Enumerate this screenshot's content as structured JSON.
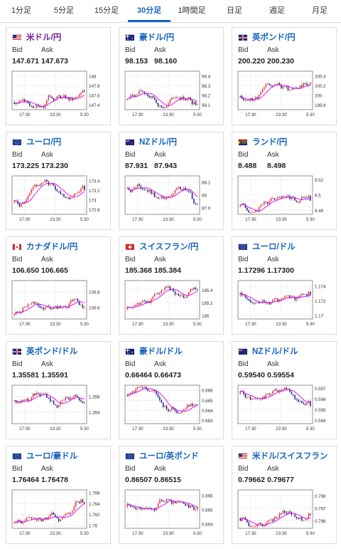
{
  "tabs": [
    {
      "label": "1分足",
      "active": false
    },
    {
      "label": "5分足",
      "active": false
    },
    {
      "label": "15分足",
      "active": false
    },
    {
      "label": "30分足",
      "active": true
    },
    {
      "label": "1時間足",
      "active": false
    },
    {
      "label": "日足",
      "active": false
    },
    {
      "label": "週足",
      "active": false
    },
    {
      "label": "月足",
      "active": false
    }
  ],
  "labels": {
    "bid": "Bid",
    "ask": "Ask"
  },
  "colors": {
    "up": "#e53935",
    "down": "#1a237e",
    "ma": "#d500f9",
    "accent": "#1565c0"
  },
  "pairs": [
    {
      "name": "米ドル/円",
      "flag": "us-flag-icon",
      "bid": "147.671",
      "ask": "147.673",
      "chart_data": {
        "type": "candlestick",
        "x_ticks": [
          "17:30",
          "23:30",
          "5:30"
        ],
        "y_ticks": [
          "147.4",
          "147.6",
          "147.8",
          "148"
        ],
        "ylim": [
          147.3,
          148.1
        ],
        "start": 147.45,
        "end": 147.67,
        "seed": 3
      }
    },
    {
      "name": "豪ドル/円",
      "flag": "au-flag-icon",
      "bid": "98.153",
      "ask": "98.160",
      "chart_data": {
        "type": "candlestick",
        "x_ticks": [
          "17:30",
          "23:30",
          "5:30"
        ],
        "y_ticks": [
          "98.1",
          "98.2",
          "98.3",
          "98.4"
        ],
        "ylim": [
          98.05,
          98.45
        ],
        "start": 98.15,
        "end": 98.15,
        "seed": 7
      }
    },
    {
      "name": "英ポンド/円",
      "flag": "gb-flag-icon",
      "bid": "200.220",
      "ask": "200.230",
      "chart_data": {
        "type": "candlestick",
        "x_ticks": [
          "17:30",
          "23:30",
          "5:30"
        ],
        "y_ticks": [
          "199.8",
          "200",
          "200.2",
          "200.4"
        ],
        "ylim": [
          199.7,
          200.5
        ],
        "start": 199.95,
        "end": 200.22,
        "seed": 11
      }
    },
    {
      "name": "ユーロ/円",
      "flag": "eu-flag-icon",
      "bid": "173.225",
      "ask": "173.230",
      "chart_data": {
        "type": "candlestick",
        "x_ticks": [
          "17:30",
          "23:30",
          "5:30"
        ],
        "y_ticks": [
          "172.8",
          "173",
          "173.2",
          "173.4"
        ],
        "ylim": [
          172.7,
          173.5
        ],
        "start": 172.95,
        "end": 173.22,
        "seed": 5
      }
    },
    {
      "name": "NZドル/円",
      "flag": "nz-flag-icon",
      "bid": "87.931",
      "ask": "87.943",
      "chart_data": {
        "type": "candlestick",
        "x_ticks": [
          "17:30",
          "23:30",
          "5:30"
        ],
        "y_ticks": [
          "87.9",
          "88",
          "88.1"
        ],
        "ylim": [
          87.85,
          88.15
        ],
        "start": 88.05,
        "end": 87.93,
        "seed": 13
      }
    },
    {
      "name": "ランド/円",
      "flag": "za-flag-icon",
      "bid": "8.488",
      "ask": "8.498",
      "chart_data": {
        "type": "candlestick",
        "x_ticks": [
          "17:30",
          "23:30",
          "5:30"
        ],
        "y_ticks": [
          "8.48",
          "8.5",
          "8.52"
        ],
        "ylim": [
          8.475,
          8.525
        ],
        "start": 8.485,
        "end": 8.493,
        "seed": 17
      }
    },
    {
      "name": "カナダドル/円",
      "flag": "ca-flag-icon",
      "bid": "106.650",
      "ask": "106.665",
      "chart_data": {
        "type": "candlestick",
        "x_ticks": [
          "17:30",
          "23:30",
          "5:30"
        ],
        "y_ticks": [
          "106.6",
          "106.8"
        ],
        "ylim": [
          106.45,
          106.95
        ],
        "start": 106.5,
        "end": 106.66,
        "seed": 19
      }
    },
    {
      "name": "スイスフラン/円",
      "flag": "ch-flag-icon",
      "bid": "185.368",
      "ask": "185.384",
      "chart_data": {
        "type": "candlestick",
        "x_ticks": [
          "17:30",
          "23:30",
          "5:30"
        ],
        "y_ticks": [
          "185",
          "185.2",
          "185.4"
        ],
        "ylim": [
          184.95,
          185.55
        ],
        "start": 185.1,
        "end": 185.37,
        "seed": 23
      }
    },
    {
      "name": "ユーロ/ドル",
      "flag": "eu-flag-icon",
      "bid": "1.17296",
      "ask": "1.17300",
      "chart_data": {
        "type": "candlestick",
        "x_ticks": [
          "17:30",
          "23:30",
          "5:30"
        ],
        "y_ticks": [
          "1.17",
          "1.172",
          "1.174"
        ],
        "ylim": [
          1.1695,
          1.1748
        ],
        "start": 1.1728,
        "end": 1.1729,
        "seed": 29
      }
    },
    {
      "name": "英ポンド/ドル",
      "flag": "gb-flag-icon",
      "bid": "1.35581",
      "ask": "1.35591",
      "chart_data": {
        "type": "candlestick",
        "x_ticks": [
          "17:30",
          "23:30",
          "5:30"
        ],
        "y_ticks": [
          "1.354",
          "1.356"
        ],
        "ylim": [
          1.3525,
          1.3575
        ],
        "start": 1.3555,
        "end": 1.3558,
        "seed": 31
      }
    },
    {
      "name": "豪ドル/ドル",
      "flag": "au-flag-icon",
      "bid": "0.66464",
      "ask": "0.66473",
      "chart_data": {
        "type": "candlestick",
        "x_ticks": [
          "17:30",
          "23:30",
          "5:30"
        ],
        "y_ticks": [
          "0.663",
          "0.664",
          "0.665",
          "0.666"
        ],
        "ylim": [
          0.6627,
          0.6665
        ],
        "start": 0.6655,
        "end": 0.6646,
        "seed": 37
      }
    },
    {
      "name": "NZドル/ドル",
      "flag": "nz-flag-icon",
      "bid": "0.59540",
      "ask": "0.59554",
      "chart_data": {
        "type": "candlestick",
        "x_ticks": [
          "17:30",
          "23:30",
          "5:30"
        ],
        "y_ticks": [
          "0.594",
          "0.595",
          "0.596",
          "0.597"
        ],
        "ylim": [
          0.5937,
          0.5973
        ],
        "start": 0.5965,
        "end": 0.5954,
        "seed": 41
      }
    },
    {
      "name": "ユーロ/豪ドル",
      "flag": "eu-flag-icon",
      "bid": "1.76464",
      "ask": "1.76478",
      "chart_data": {
        "type": "candlestick",
        "x_ticks": [
          "17:30",
          "23:30",
          "5:30"
        ],
        "y_ticks": [
          "1.76",
          "1.762",
          "1.764",
          "1.766"
        ],
        "ylim": [
          1.7595,
          1.7665
        ],
        "start": 1.7605,
        "end": 1.7646,
        "seed": 43
      }
    },
    {
      "name": "ユーロ/英ポンド",
      "flag": "eu-flag-icon",
      "bid": "0.86507",
      "ask": "0.86515",
      "chart_data": {
        "type": "candlestick",
        "x_ticks": [
          "17:30",
          "23:30",
          "5:30"
        ],
        "y_ticks": [
          "0.864",
          "0.865",
          "0.866"
        ],
        "ylim": [
          0.8637,
          0.8664
        ],
        "start": 0.8652,
        "end": 0.8651,
        "seed": 47
      }
    },
    {
      "name": "米ドル/スイスフラン",
      "flag": "us-flag-icon",
      "bid": "0.79662",
      "ask": "0.79677",
      "chart_data": {
        "type": "candlestick",
        "x_ticks": [
          "17:30",
          "23:30",
          "5:30"
        ],
        "y_ticks": [
          "0.796",
          "0.797",
          "0.798"
        ],
        "ylim": [
          0.7954,
          0.7985
        ],
        "start": 0.7962,
        "end": 0.7966,
        "seed": 53
      }
    }
  ]
}
